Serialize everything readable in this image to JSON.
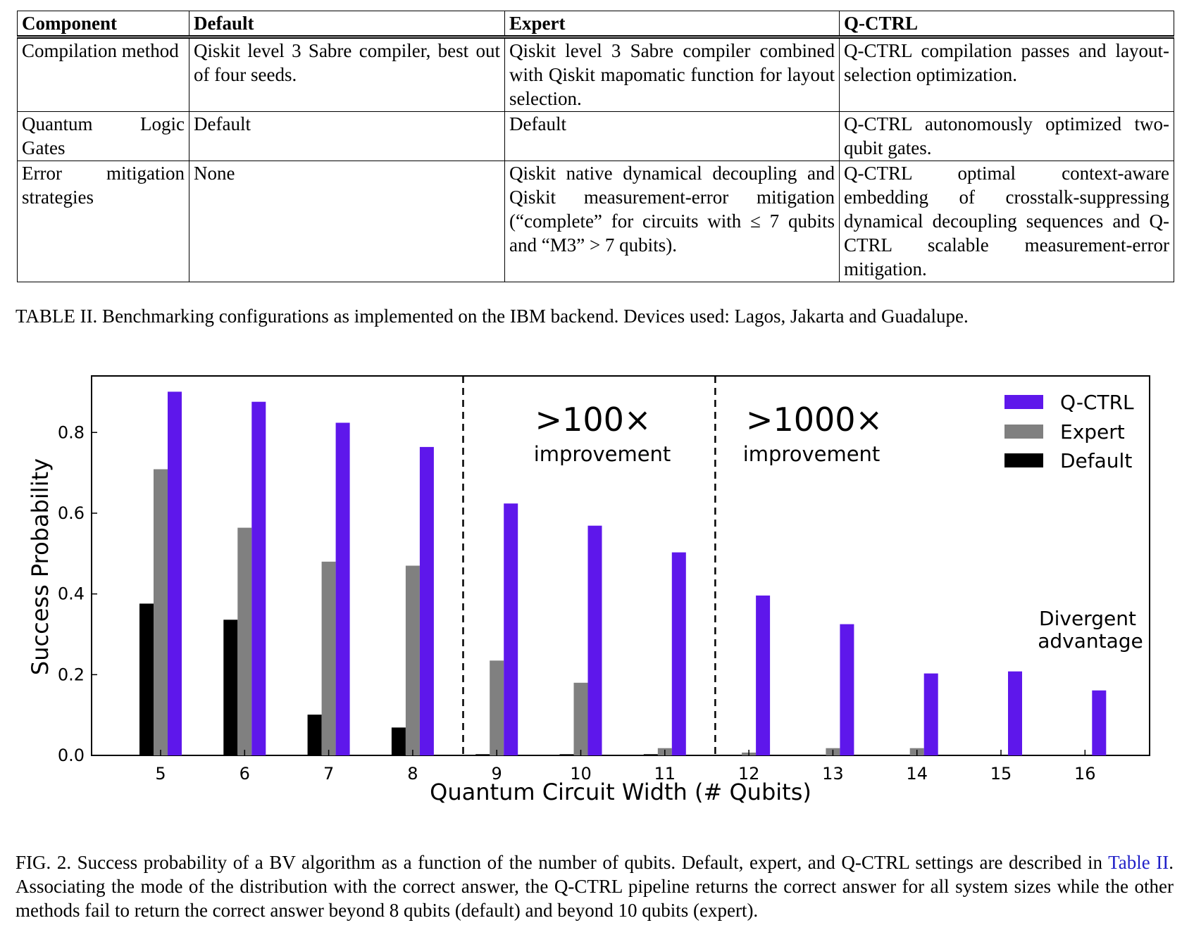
{
  "table": {
    "headers": [
      "Component",
      "Default",
      "Expert",
      "Q-CTRL"
    ],
    "rows": [
      {
        "component": "Compilation method",
        "default": "Qiskit level 3 Sabre compiler, best out of four seeds.",
        "expert": "Qiskit level 3 Sabre compiler combined with Qiskit mapomatic function for layout selection.",
        "qctrl": "Q-CTRL compilation passes and layout-selection optimization."
      },
      {
        "component": "Quantum Logic Gates",
        "default": "Default",
        "expert": "Default",
        "qctrl": "Q-CTRL autonomously optimized two-qubit gates."
      },
      {
        "component": "Error mitigation strategies",
        "default": "None",
        "expert": "Qiskit native dynamical decoupling and Qiskit measurement-error mitigation (“complete” for circuits with ≤ 7 qubits and “M3” > 7 qubits).",
        "qctrl": "Q-CTRL optimal context-aware embedding of crosstalk-suppressing dynamical decoupling sequences and Q-CTRL scalable measurement-error mitigation."
      }
    ]
  },
  "table_caption": "TABLE II. Benchmarking configurations as implemented on the IBM backend. Devices used: Lagos, Jakarta and Guadalupe.",
  "figure_caption": {
    "before_link": "FIG. 2. Success probability of a BV algorithm as a function of the number of qubits. Default, expert, and Q-CTRL settings are described in ",
    "link": "Table II",
    "after_link": ". Associating the mode of the distribution with the correct answer, the Q-CTRL pipeline returns the correct answer for all system sizes while the other methods fail to return the correct answer beyond 8 qubits (default) and beyond 10 qubits (expert)."
  },
  "chart_data": {
    "type": "bar",
    "xlabel": "Quantum Circuit Width (# Qubits)",
    "ylabel": "Success Probability",
    "ylim": [
      0,
      0.94
    ],
    "yticks": [
      0.0,
      0.2,
      0.4,
      0.6,
      0.8
    ],
    "ytick_labels": [
      "0.0",
      "0.2",
      "0.4",
      "0.6",
      "0.8"
    ],
    "categories": [
      "5",
      "6",
      "7",
      "8",
      "9",
      "10",
      "11",
      "12",
      "13",
      "14",
      "15",
      "16"
    ],
    "series": [
      {
        "name": "Default",
        "color": "#000000",
        "values": [
          0.376,
          0.336,
          0.101,
          0.069,
          0.003,
          0.003,
          0.003,
          0.0,
          0.0,
          0.0,
          0.0,
          0.0
        ]
      },
      {
        "name": "Expert",
        "color": "#808080",
        "values": [
          0.709,
          0.564,
          0.48,
          0.47,
          0.235,
          0.18,
          0.018,
          0.007,
          0.018,
          0.018,
          0.0,
          0.0
        ]
      },
      {
        "name": "Q-CTRL",
        "color": "#5e17eb",
        "values": [
          0.901,
          0.876,
          0.824,
          0.764,
          0.624,
          0.569,
          0.503,
          0.396,
          0.325,
          0.203,
          0.208,
          0.161
        ]
      }
    ],
    "legend_order": [
      "Q-CTRL",
      "Expert",
      "Default"
    ],
    "legend_position": "top-right",
    "dividers_after_category": [
      "8",
      "11"
    ],
    "annotations": [
      {
        "big": ">100×",
        "small": "improvement"
      },
      {
        "big": ">1000×",
        "small": "improvement"
      },
      {
        "line1": "Divergent",
        "line2": "advantage"
      }
    ],
    "grid": false
  }
}
